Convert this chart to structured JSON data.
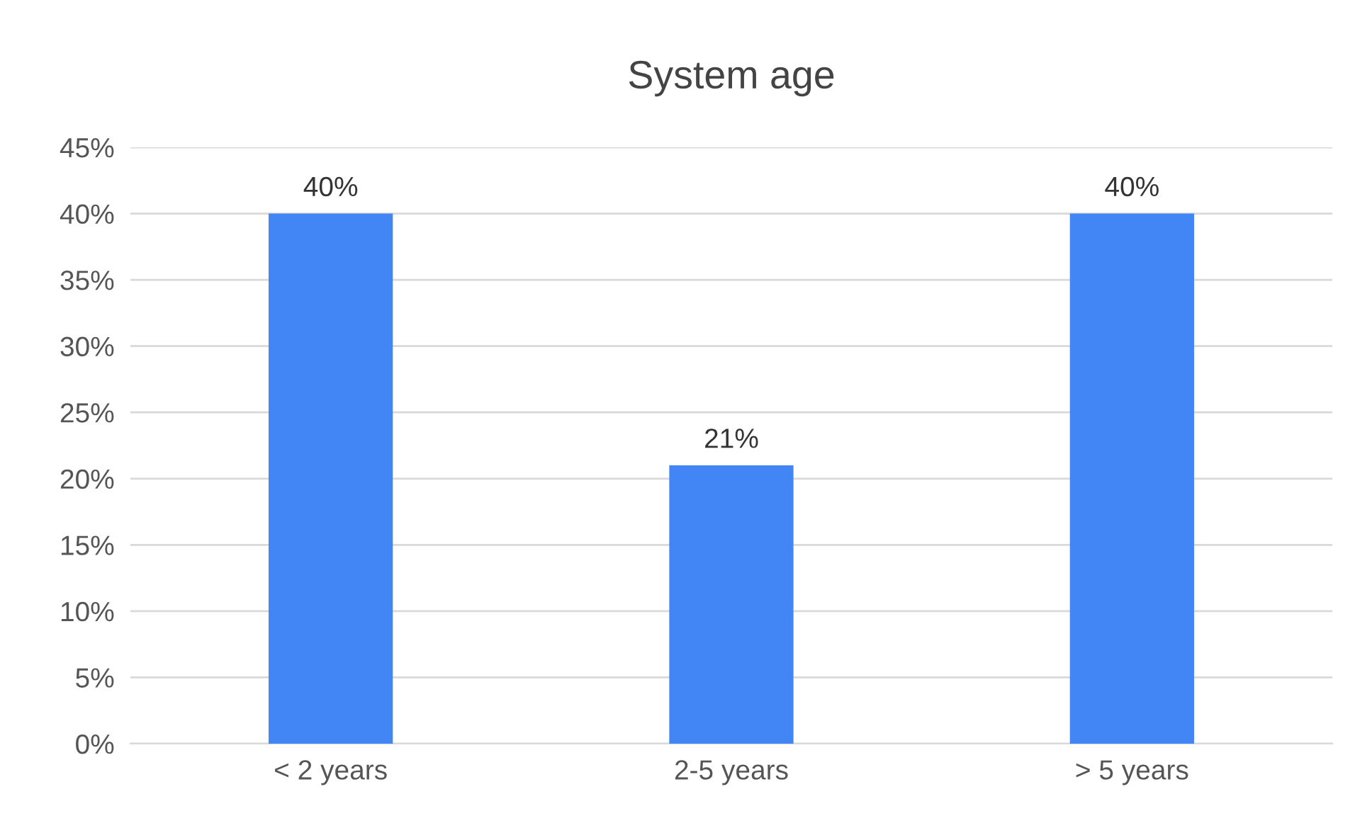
{
  "chart_data": {
    "type": "bar",
    "title": "System age",
    "categories": [
      "< 2 years",
      "2-5 years",
      "> 5 years"
    ],
    "values": [
      40,
      21,
      40
    ],
    "value_labels": [
      "40%",
      "21%",
      "40%"
    ],
    "color": "#4285f4",
    "ylim": [
      0,
      45
    ],
    "yticks": [
      {
        "value": 0,
        "label": "0%"
      },
      {
        "value": 5,
        "label": "5%"
      },
      {
        "value": 10,
        "label": "10%"
      },
      {
        "value": 15,
        "label": "15%"
      },
      {
        "value": 20,
        "label": "20%"
      },
      {
        "value": 25,
        "label": "25%"
      },
      {
        "value": 30,
        "label": "30%"
      },
      {
        "value": 35,
        "label": "35%"
      },
      {
        "value": 40,
        "label": "40%"
      },
      {
        "value": 45,
        "label": "45%"
      }
    ],
    "grid": "y",
    "legend": false
  }
}
